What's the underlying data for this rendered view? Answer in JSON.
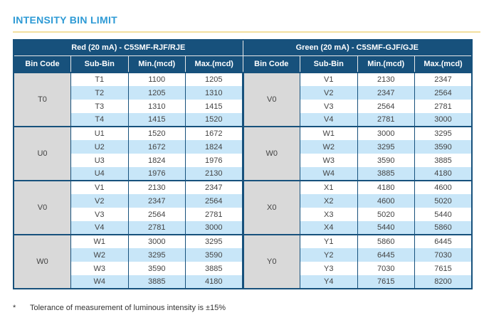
{
  "page": {
    "title": "INTENSITY BIN LIMIT",
    "footnote_marker": "*",
    "footnote_text": "Tolerance of measurement of luminous intensity is ±15%"
  },
  "colors": {
    "title_blue": "#2D9AD5",
    "header_navy": "#17517C",
    "row_alt_blue": "#C8E6F8",
    "bin_cell_gray": "#D9D9D9",
    "divider_gold": "#F3DF9E",
    "border_navy": "#17517C"
  },
  "table": {
    "left": {
      "title": "Red (20 mA) - C5SMF-RJF/RJE",
      "columns": [
        "Bin Code",
        "Sub-Bin",
        "Min.(mcd)",
        "Max.(mcd)"
      ],
      "groups": [
        {
          "bin_code": "T0",
          "rows": [
            [
              "T1",
              "1100",
              "1205"
            ],
            [
              "T2",
              "1205",
              "1310"
            ],
            [
              "T3",
              "1310",
              "1415"
            ],
            [
              "T4",
              "1415",
              "1520"
            ]
          ]
        },
        {
          "bin_code": "U0",
          "rows": [
            [
              "U1",
              "1520",
              "1672"
            ],
            [
              "U2",
              "1672",
              "1824"
            ],
            [
              "U3",
              "1824",
              "1976"
            ],
            [
              "U4",
              "1976",
              "2130"
            ]
          ]
        },
        {
          "bin_code": "V0",
          "rows": [
            [
              "V1",
              "2130",
              "2347"
            ],
            [
              "V2",
              "2347",
              "2564"
            ],
            [
              "V3",
              "2564",
              "2781"
            ],
            [
              "V4",
              "2781",
              "3000"
            ]
          ]
        },
        {
          "bin_code": "W0",
          "rows": [
            [
              "W1",
              "3000",
              "3295"
            ],
            [
              "W2",
              "3295",
              "3590"
            ],
            [
              "W3",
              "3590",
              "3885"
            ],
            [
              "W4",
              "3885",
              "4180"
            ]
          ]
        }
      ]
    },
    "right": {
      "title": "Green (20 mA) - C5SMF-GJF/GJE",
      "columns": [
        "Bin Code",
        "Sub-Bin",
        "Min.(mcd)",
        "Max.(mcd)"
      ],
      "groups": [
        {
          "bin_code": "V0",
          "rows": [
            [
              "V1",
              "2130",
              "2347"
            ],
            [
              "V2",
              "2347",
              "2564"
            ],
            [
              "V3",
              "2564",
              "2781"
            ],
            [
              "V4",
              "2781",
              "3000"
            ]
          ]
        },
        {
          "bin_code": "W0",
          "rows": [
            [
              "W1",
              "3000",
              "3295"
            ],
            [
              "W2",
              "3295",
              "3590"
            ],
            [
              "W3",
              "3590",
              "3885"
            ],
            [
              "W4",
              "3885",
              "4180"
            ]
          ]
        },
        {
          "bin_code": "X0",
          "rows": [
            [
              "X1",
              "4180",
              "4600"
            ],
            [
              "X2",
              "4600",
              "5020"
            ],
            [
              "X3",
              "5020",
              "5440"
            ],
            [
              "X4",
              "5440",
              "5860"
            ]
          ]
        },
        {
          "bin_code": "Y0",
          "rows": [
            [
              "Y1",
              "5860",
              "6445"
            ],
            [
              "Y2",
              "6445",
              "7030"
            ],
            [
              "Y3",
              "7030",
              "7615"
            ],
            [
              "Y4",
              "7615",
              "8200"
            ]
          ]
        }
      ]
    }
  }
}
